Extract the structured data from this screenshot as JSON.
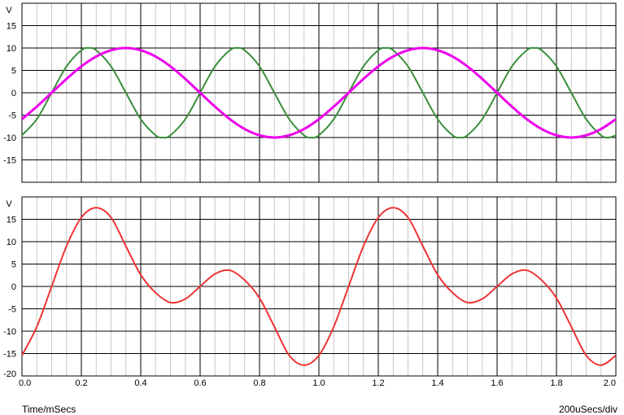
{
  "footer": {
    "time_label": "Time/mSecs",
    "timebase_label": "200uSecs/div"
  },
  "chart_data": [
    {
      "type": "line",
      "ylabel": "V",
      "ylim": [
        -20,
        20
      ],
      "yticks": [
        15,
        10,
        5,
        0,
        -5,
        -10,
        -15
      ],
      "xlim": [
        0,
        2
      ],
      "grid": true,
      "series": [
        {
          "color": "#3a8f3a",
          "x": [
            0.0,
            0.05,
            0.1,
            0.15,
            0.2,
            0.225,
            0.25,
            0.3,
            0.35,
            0.4,
            0.45,
            0.475,
            0.5,
            0.55,
            0.6,
            0.65,
            0.7,
            0.725,
            0.75,
            0.8,
            0.85,
            0.9,
            0.95,
            0.975,
            1.0,
            1.05,
            1.1,
            1.15,
            1.2,
            1.225,
            1.25,
            1.3,
            1.35,
            1.4,
            1.45,
            1.475,
            1.5,
            1.55,
            1.6,
            1.65,
            1.7,
            1.725,
            1.75,
            1.8,
            1.85,
            1.9,
            1.95,
            1.975,
            2.0
          ],
          "y": [
            -9.5,
            -5.9,
            0,
            5.9,
            9.5,
            10,
            9.5,
            5.9,
            0,
            -5.9,
            -9.5,
            -10,
            -9.5,
            -5.9,
            0,
            5.9,
            9.5,
            10,
            9.5,
            5.9,
            0,
            -5.9,
            -9.5,
            -10,
            -9.5,
            -5.9,
            0,
            5.9,
            9.5,
            10,
            9.5,
            5.9,
            0,
            -5.9,
            -9.5,
            -10,
            -9.5,
            -5.9,
            0,
            5.9,
            9.5,
            10,
            9.5,
            5.9,
            0,
            -5.9,
            -9.5,
            -10,
            -9.5
          ]
        },
        {
          "color": "#ee00ee",
          "x": [
            0.0,
            0.05,
            0.1,
            0.15,
            0.2,
            0.25,
            0.3,
            0.35,
            0.4,
            0.45,
            0.5,
            0.55,
            0.6,
            0.65,
            0.7,
            0.75,
            0.8,
            0.85,
            0.9,
            0.95,
            1.0,
            1.05,
            1.1,
            1.15,
            1.2,
            1.25,
            1.3,
            1.35,
            1.4,
            1.45,
            1.5,
            1.55,
            1.6,
            1.65,
            1.7,
            1.75,
            1.8,
            1.85,
            1.9,
            1.95,
            2.0
          ],
          "y": [
            -5.9,
            -3.1,
            0,
            3.1,
            5.9,
            8.1,
            9.5,
            10,
            9.5,
            8.1,
            5.9,
            3.1,
            0,
            -3.1,
            -5.9,
            -8.1,
            -9.5,
            -10,
            -9.5,
            -8.1,
            -5.9,
            -3.1,
            0,
            3.1,
            5.9,
            8.1,
            9.5,
            10,
            9.5,
            8.1,
            5.9,
            3.1,
            0,
            -3.1,
            -5.9,
            -8.1,
            -9.5,
            -10,
            -9.5,
            -8.1,
            -5.9
          ]
        }
      ]
    },
    {
      "type": "line",
      "ylabel": "V",
      "ylim": [
        -20,
        20
      ],
      "yticks": [
        15,
        10,
        5,
        0,
        -5,
        -10,
        -15,
        -20
      ],
      "xlim": [
        0,
        2
      ],
      "xticks": [
        "0.0",
        "0.2",
        "0.4",
        "0.6",
        "0.8",
        "1.0",
        "1.2",
        "1.4",
        "1.6",
        "1.8",
        "2.0"
      ],
      "grid": true,
      "series": [
        {
          "color": "#ee3333",
          "x": [
            0.0,
            0.05,
            0.1,
            0.15,
            0.2,
            0.25,
            0.3,
            0.35,
            0.4,
            0.45,
            0.5,
            0.55,
            0.6,
            0.65,
            0.7,
            0.75,
            0.8,
            0.85,
            0.9,
            0.95,
            1.0,
            1.05,
            1.1,
            1.15,
            1.2,
            1.25,
            1.3,
            1.35,
            1.4,
            1.45,
            1.5,
            1.55,
            1.6,
            1.65,
            1.7,
            1.75,
            1.8,
            1.85,
            1.9,
            1.95,
            2.0
          ],
          "y": [
            -15.4,
            -9.0,
            0,
            9.0,
            15.4,
            17.6,
            15.4,
            9.0,
            2.6,
            -1.4,
            -3.6,
            -2.8,
            0,
            2.8,
            3.6,
            1.4,
            -2.6,
            -9.0,
            -15.4,
            -17.6,
            -15.4,
            -9.0,
            0,
            9.0,
            15.4,
            17.6,
            15.4,
            9.0,
            2.6,
            -1.4,
            -3.6,
            -2.8,
            0,
            2.8,
            3.6,
            1.4,
            -2.6,
            -9.0,
            -15.4,
            -17.6,
            -15.4
          ]
        }
      ]
    }
  ]
}
